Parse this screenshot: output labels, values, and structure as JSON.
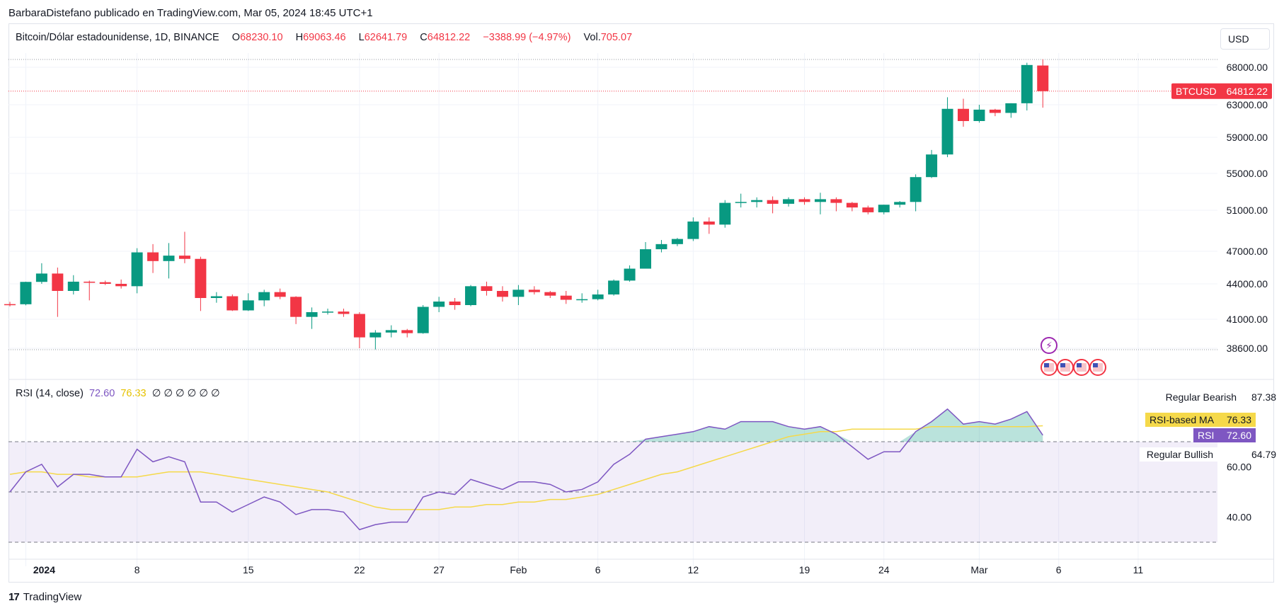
{
  "header": {
    "published": "BarbaraDistefano publicado en TradingView.com, Mar 05, 2024 18:45 UTC+1"
  },
  "legend": {
    "symbol": "Bitcoin/Dólar estadounidense, 1D, BINANCE",
    "o_label": "O",
    "o_value": "68230.10",
    "h_label": "H",
    "h_value": "69063.46",
    "l_label": "L",
    "l_value": "62641.79",
    "c_label": "C",
    "c_value": "64812.22",
    "change": "−3388.99 (−4.97%)",
    "vol_label": "Vol.",
    "vol_value": "705.07"
  },
  "currency_button": "USD",
  "rsi_legend": {
    "name": "RSI (14, close)",
    "rsi": "72.60",
    "ma": "76.33",
    "extras": "∅ ∅ ∅ ∅ ∅ ∅"
  },
  "footer": {
    "logo": "17",
    "brand": "TradingView"
  },
  "colors": {
    "up": "#089981",
    "down": "#f23645",
    "rsi": "#7e57c2",
    "rsi_ma": "#f5d94a"
  },
  "chart_data": {
    "type": "candlestick",
    "symbol": "BTCUSD",
    "price_axis": {
      "ticks": [
        38600,
        41000,
        44000,
        47000,
        51000,
        55000,
        59000,
        63000,
        68000
      ],
      "tick_labels": [
        "38600.00",
        "41000.00",
        "44000.00",
        "47000.00",
        "51000.00",
        "55000.00",
        "59000.00",
        "63000.00",
        "68000.00"
      ],
      "last_price_label": "BTCUSD",
      "last_price": "64812.22",
      "last_price_value": 64812.22
    },
    "x_axis": {
      "labels": [
        "2024",
        "8",
        "15",
        "22",
        "27",
        "Feb",
        "6",
        "12",
        "19",
        "24",
        "Mar",
        "6",
        "11"
      ],
      "label_index": [
        1,
        8,
        15,
        22,
        27,
        32,
        37,
        43,
        50,
        55,
        61,
        66,
        71
      ]
    },
    "candles": [
      [
        42280,
        42480,
        42090,
        42270
      ],
      [
        42270,
        44200,
        42180,
        44180
      ],
      [
        44180,
        45900,
        44000,
        44950
      ],
      [
        44950,
        45500,
        41200,
        43400
      ],
      [
        43400,
        44800,
        43100,
        44200
      ],
      [
        44200,
        44300,
        42600,
        44150
      ],
      [
        44150,
        44300,
        43900,
        44000
      ],
      [
        44000,
        44400,
        43600,
        43800
      ],
      [
        43800,
        47300,
        43200,
        46900
      ],
      [
        46900,
        47700,
        45000,
        46100
      ],
      [
        46100,
        47800,
        44500,
        46600
      ],
      [
        46600,
        48900,
        45900,
        46300
      ],
      [
        46300,
        46500,
        41700,
        42800
      ],
      [
        42800,
        43300,
        42400,
        42950
      ],
      [
        42950,
        43100,
        41700,
        41750
      ],
      [
        41750,
        43200,
        41700,
        42600
      ],
      [
        42600,
        43500,
        42100,
        43300
      ],
      [
        43300,
        43600,
        42700,
        42900
      ],
      [
        42900,
        42950,
        40600,
        41200
      ],
      [
        41200,
        42000,
        40200,
        41600
      ],
      [
        41600,
        41900,
        41400,
        41650
      ],
      [
        41650,
        41900,
        41200,
        41450
      ],
      [
        41450,
        41600,
        38600,
        39500
      ],
      [
        39500,
        40100,
        38500,
        39900
      ],
      [
        39900,
        40500,
        39500,
        40100
      ],
      [
        40100,
        40200,
        39500,
        39850
      ],
      [
        39850,
        42200,
        39800,
        42050
      ],
      [
        42050,
        42900,
        41600,
        42500
      ],
      [
        42500,
        42800,
        41800,
        42200
      ],
      [
        42200,
        43900,
        42100,
        43800
      ],
      [
        43800,
        44200,
        43000,
        43400
      ],
      [
        43400,
        43800,
        42500,
        42900
      ],
      [
        42900,
        43900,
        42200,
        43500
      ],
      [
        43500,
        43800,
        43100,
        43300
      ],
      [
        43300,
        43400,
        42800,
        43000
      ],
      [
        43000,
        43400,
        42300,
        42650
      ],
      [
        42650,
        43200,
        42400,
        42700
      ],
      [
        42700,
        43500,
        42600,
        43100
      ],
      [
        43100,
        44400,
        43000,
        44300
      ],
      [
        44300,
        45700,
        44200,
        45400
      ],
      [
        45400,
        47900,
        45400,
        47200
      ],
      [
        47200,
        48100,
        46900,
        47700
      ],
      [
        47700,
        48300,
        47500,
        48200
      ],
      [
        48200,
        50300,
        48000,
        49900
      ],
      [
        49900,
        50300,
        48700,
        49600
      ],
      [
        49600,
        52100,
        49300,
        51800
      ],
      [
        51800,
        52800,
        51300,
        51900
      ],
      [
        51900,
        52400,
        51300,
        52100
      ],
      [
        52100,
        52500,
        50700,
        51700
      ],
      [
        51700,
        52400,
        51400,
        52200
      ],
      [
        52200,
        52400,
        51600,
        51900
      ],
      [
        51900,
        52900,
        50600,
        52200
      ],
      [
        52200,
        52400,
        50900,
        51800
      ],
      [
        51800,
        51900,
        50900,
        51300
      ],
      [
        51300,
        51500,
        50600,
        50800
      ],
      [
        50800,
        51600,
        50600,
        51600
      ],
      [
        51600,
        52000,
        51300,
        51900
      ],
      [
        51900,
        54900,
        50900,
        54600
      ],
      [
        54600,
        57600,
        54500,
        57100
      ],
      [
        57100,
        64000,
        56800,
        62500
      ],
      [
        62500,
        63800,
        60300,
        61000
      ],
      [
        61000,
        63000,
        60800,
        62400
      ],
      [
        62400,
        62500,
        61600,
        62000
      ],
      [
        62000,
        63200,
        61400,
        63200
      ],
      [
        63200,
        68600,
        62300,
        68300
      ],
      [
        68230.1,
        69063.46,
        62641.79,
        64812.22
      ]
    ],
    "rsi": {
      "name": "RSI (14, close)",
      "ticks": [
        40,
        60
      ],
      "tick_labels": [
        "40.00",
        "60.00"
      ],
      "bands": {
        "upper": 70,
        "middle": 50,
        "lower": 30
      },
      "range": [
        30,
        90
      ],
      "side_labels": [
        {
          "text": "Regular Bearish",
          "value": "87.38"
        },
        {
          "text": "RSI-based MA",
          "value": "76.33"
        },
        {
          "text": "RSI",
          "value": "72.60"
        },
        {
          "text": "Regular Bullish",
          "value": "64.79"
        }
      ],
      "rsi_values": [
        50,
        58,
        61,
        52,
        57,
        57,
        56,
        56,
        67,
        62,
        64,
        62,
        46,
        46,
        42,
        45,
        48,
        46,
        41,
        43,
        43,
        42,
        35,
        37,
        38,
        38,
        48,
        50,
        49,
        55,
        53,
        51,
        54,
        54,
        53,
        50,
        51,
        54,
        61,
        65,
        71,
        72,
        73,
        74,
        76,
        75,
        78,
        78,
        78,
        76,
        75,
        76,
        73,
        68,
        63,
        66,
        66,
        74,
        78,
        83,
        77,
        78,
        77,
        79,
        82,
        72.6
      ],
      "ma_values": [
        57,
        58,
        58,
        57,
        57,
        56,
        56,
        56,
        56,
        57,
        58,
        58,
        58,
        57,
        56,
        55,
        54,
        53,
        52,
        51,
        50,
        48,
        46,
        44,
        43,
        43,
        43,
        43,
        44,
        44,
        45,
        45,
        46,
        46,
        47,
        47,
        48,
        49,
        51,
        53,
        55,
        57,
        58,
        60,
        62,
        64,
        66,
        68,
        70,
        72,
        73,
        74,
        74,
        75,
        75,
        75,
        75,
        75,
        76,
        76,
        76,
        76,
        76,
        76,
        76,
        76.33
      ]
    },
    "grid": true
  }
}
